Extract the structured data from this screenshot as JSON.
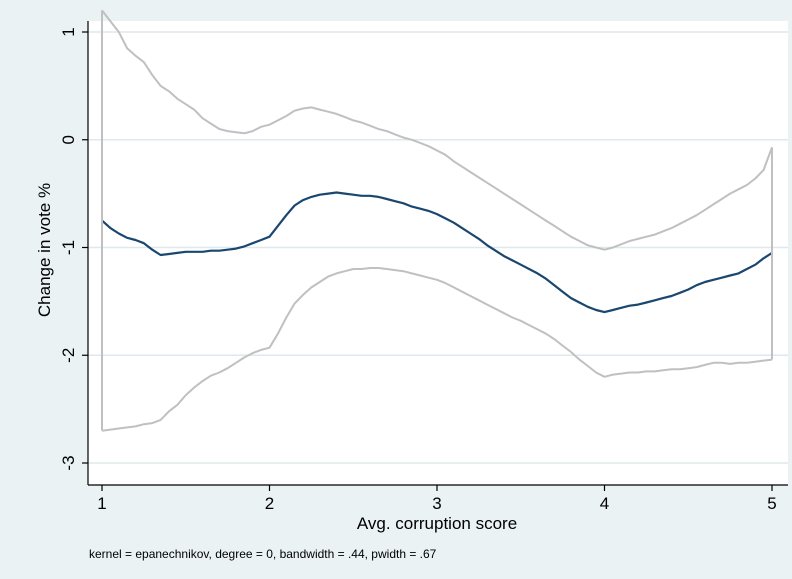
{
  "chart_data": {
    "type": "line",
    "title": "",
    "xlabel": "Avg. corruption score",
    "ylabel": "Change in vote %",
    "note": "kernel = epanechnikov, degree = 0, bandwidth = .44, pwidth = .67",
    "xlim": [
      1,
      5
    ],
    "ylim": [
      -3,
      1.2
    ],
    "x_ticks": [
      1,
      2,
      3,
      4,
      5
    ],
    "y_ticks": [
      1,
      0,
      -1,
      -2,
      -3
    ],
    "x_tick_labels": [
      "1",
      "2",
      "3",
      "4",
      "5"
    ],
    "y_tick_labels": [
      "1",
      "0",
      "-1",
      "-2",
      "-3"
    ],
    "grid": true,
    "legend": "none",
    "colors": {
      "background": "#eaf2f3",
      "plot_area": "#ffffff",
      "grid": "#dde9ec",
      "fit": "#1a476f",
      "ci": "#c0c0c0"
    },
    "series": [
      {
        "x": [
          1.0,
          1.05,
          1.1,
          1.15,
          1.2,
          1.25,
          1.3,
          1.35,
          1.4,
          1.45,
          1.5,
          1.55,
          1.6,
          1.65,
          1.7,
          1.75,
          1.8,
          1.85,
          1.9,
          1.95,
          2.0,
          2.05,
          2.1,
          2.15,
          2.2,
          2.25,
          2.3,
          2.35,
          2.4,
          2.45,
          2.5,
          2.55,
          2.6,
          2.65,
          2.7,
          2.75,
          2.8,
          2.85,
          2.9,
          2.95,
          3.0,
          3.05,
          3.1,
          3.15,
          3.2,
          3.25,
          3.3,
          3.35,
          3.4,
          3.45,
          3.5,
          3.55,
          3.6,
          3.65,
          3.7,
          3.75,
          3.8,
          3.85,
          3.9,
          3.95,
          4.0,
          4.05,
          4.1,
          4.15,
          4.2,
          4.25,
          4.3,
          4.35,
          4.4,
          4.45,
          4.5,
          4.55,
          4.6,
          4.65,
          4.7,
          4.75,
          4.8,
          4.85,
          4.9,
          4.95,
          5.0
        ],
        "values": [
          1.2,
          1.1,
          1.0,
          0.85,
          0.78,
          0.72,
          0.6,
          0.5,
          0.45,
          0.38,
          0.33,
          0.28,
          0.2,
          0.15,
          0.1,
          0.08,
          0.07,
          0.06,
          0.08,
          0.12,
          0.14,
          0.18,
          0.22,
          0.27,
          0.29,
          0.3,
          0.28,
          0.26,
          0.24,
          0.21,
          0.18,
          0.16,
          0.13,
          0.1,
          0.08,
          0.05,
          0.02,
          0.0,
          -0.03,
          -0.06,
          -0.1,
          -0.14,
          -0.2,
          -0.25,
          -0.3,
          -0.35,
          -0.4,
          -0.45,
          -0.5,
          -0.55,
          -0.6,
          -0.65,
          -0.7,
          -0.75,
          -0.8,
          -0.85,
          -0.9,
          -0.94,
          -0.98,
          -1.0,
          -1.02,
          -1.0,
          -0.97,
          -0.94,
          -0.92,
          -0.9,
          -0.88,
          -0.85,
          -0.82,
          -0.78,
          -0.74,
          -0.7,
          -0.65,
          -0.6,
          -0.55,
          -0.5,
          -0.46,
          -0.42,
          -0.36,
          -0.28,
          -0.07
        ]
      },
      {
        "x": [
          1.0,
          1.05,
          1.1,
          1.15,
          1.2,
          1.25,
          1.3,
          1.35,
          1.4,
          1.45,
          1.5,
          1.55,
          1.6,
          1.65,
          1.7,
          1.75,
          1.8,
          1.85,
          1.9,
          1.95,
          2.0,
          2.05,
          2.1,
          2.15,
          2.2,
          2.25,
          2.3,
          2.35,
          2.4,
          2.45,
          2.5,
          2.55,
          2.6,
          2.65,
          2.7,
          2.75,
          2.8,
          2.85,
          2.9,
          2.95,
          3.0,
          3.05,
          3.1,
          3.15,
          3.2,
          3.25,
          3.3,
          3.35,
          3.4,
          3.45,
          3.5,
          3.55,
          3.6,
          3.65,
          3.7,
          3.75,
          3.8,
          3.85,
          3.9,
          3.95,
          4.0,
          4.05,
          4.1,
          4.15,
          4.2,
          4.25,
          4.3,
          4.35,
          4.4,
          4.45,
          4.5,
          4.55,
          4.6,
          4.65,
          4.7,
          4.75,
          4.8,
          4.85,
          4.9,
          4.95,
          5.0
        ],
        "values": [
          -0.75,
          -0.82,
          -0.87,
          -0.91,
          -0.93,
          -0.96,
          -1.02,
          -1.07,
          -1.06,
          -1.05,
          -1.04,
          -1.04,
          -1.04,
          -1.03,
          -1.03,
          -1.02,
          -1.01,
          -0.99,
          -0.96,
          -0.93,
          -0.9,
          -0.8,
          -0.7,
          -0.61,
          -0.56,
          -0.53,
          -0.51,
          -0.5,
          -0.49,
          -0.5,
          -0.51,
          -0.52,
          -0.52,
          -0.53,
          -0.55,
          -0.57,
          -0.59,
          -0.62,
          -0.64,
          -0.66,
          -0.69,
          -0.73,
          -0.77,
          -0.82,
          -0.87,
          -0.92,
          -0.98,
          -1.03,
          -1.08,
          -1.12,
          -1.16,
          -1.2,
          -1.24,
          -1.29,
          -1.35,
          -1.41,
          -1.47,
          -1.51,
          -1.55,
          -1.58,
          -1.6,
          -1.58,
          -1.56,
          -1.54,
          -1.53,
          -1.51,
          -1.49,
          -1.47,
          -1.45,
          -1.42,
          -1.39,
          -1.35,
          -1.32,
          -1.3,
          -1.28,
          -1.26,
          -1.24,
          -1.2,
          -1.16,
          -1.1,
          -1.05
        ]
      },
      {
        "x": [
          1.0,
          1.05,
          1.1,
          1.15,
          1.2,
          1.25,
          1.3,
          1.35,
          1.4,
          1.45,
          1.5,
          1.55,
          1.6,
          1.65,
          1.7,
          1.75,
          1.8,
          1.85,
          1.9,
          1.95,
          2.0,
          2.05,
          2.1,
          2.15,
          2.2,
          2.25,
          2.3,
          2.35,
          2.4,
          2.45,
          2.5,
          2.55,
          2.6,
          2.65,
          2.7,
          2.75,
          2.8,
          2.85,
          2.9,
          2.95,
          3.0,
          3.05,
          3.1,
          3.15,
          3.2,
          3.25,
          3.3,
          3.35,
          3.4,
          3.45,
          3.5,
          3.55,
          3.6,
          3.65,
          3.7,
          3.75,
          3.8,
          3.85,
          3.9,
          3.95,
          4.0,
          4.05,
          4.1,
          4.15,
          4.2,
          4.25,
          4.3,
          4.35,
          4.4,
          4.45,
          4.5,
          4.55,
          4.6,
          4.65,
          4.7,
          4.75,
          4.8,
          4.85,
          4.9,
          4.95,
          5.0
        ],
        "values": [
          -2.7,
          -2.69,
          -2.68,
          -2.67,
          -2.66,
          -2.64,
          -2.63,
          -2.6,
          -2.52,
          -2.46,
          -2.37,
          -2.3,
          -2.24,
          -2.19,
          -2.16,
          -2.12,
          -2.07,
          -2.02,
          -1.98,
          -1.95,
          -1.93,
          -1.8,
          -1.65,
          -1.52,
          -1.44,
          -1.37,
          -1.32,
          -1.27,
          -1.24,
          -1.22,
          -1.2,
          -1.2,
          -1.19,
          -1.19,
          -1.2,
          -1.21,
          -1.22,
          -1.24,
          -1.26,
          -1.28,
          -1.3,
          -1.33,
          -1.37,
          -1.41,
          -1.45,
          -1.49,
          -1.53,
          -1.57,
          -1.61,
          -1.65,
          -1.68,
          -1.72,
          -1.76,
          -1.8,
          -1.85,
          -1.91,
          -1.97,
          -2.04,
          -2.1,
          -2.16,
          -2.2,
          -2.18,
          -2.17,
          -2.16,
          -2.16,
          -2.15,
          -2.15,
          -2.14,
          -2.13,
          -2.13,
          -2.12,
          -2.11,
          -2.09,
          -2.07,
          -2.07,
          -2.08,
          -2.07,
          -2.07,
          -2.06,
          -2.05,
          -2.04
        ]
      }
    ]
  }
}
